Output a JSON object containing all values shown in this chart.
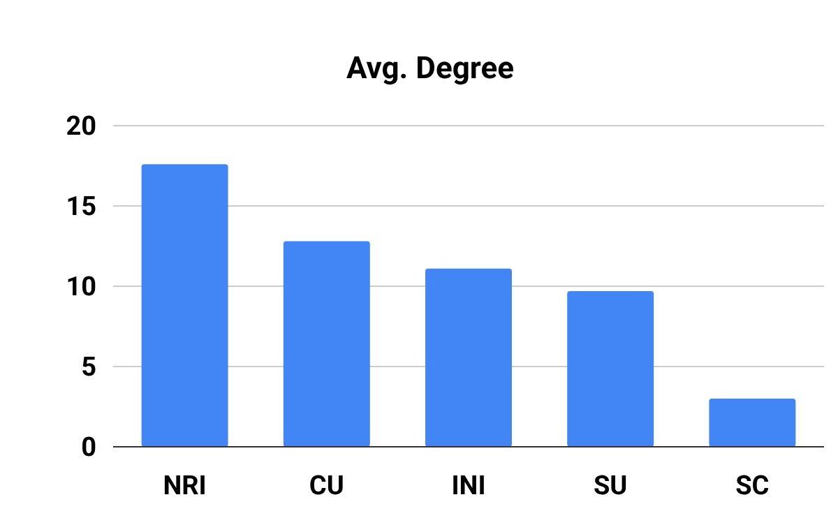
{
  "chart_data": {
    "type": "bar",
    "title": "Avg. Degree",
    "categories": [
      "NRI",
      "CU",
      "INI",
      "SU",
      "SC"
    ],
    "values": [
      17.6,
      12.8,
      11.1,
      9.7,
      3.0
    ],
    "color": "#4285f4",
    "ylim": [
      0,
      20
    ],
    "yticks": [
      0,
      5,
      10,
      15,
      20
    ],
    "grid": "y"
  }
}
